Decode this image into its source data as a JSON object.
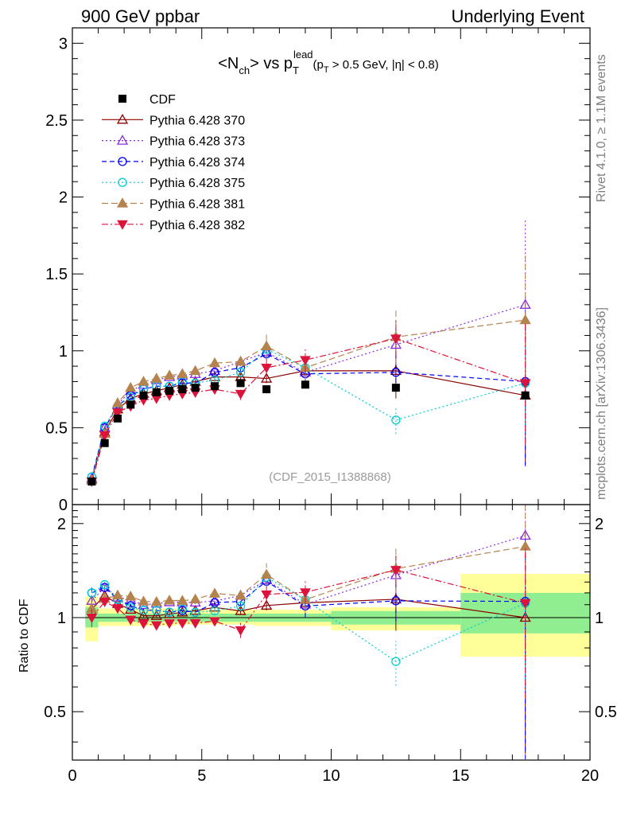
{
  "header": {
    "left": "900 GeV ppbar",
    "right": "Underlying Event"
  },
  "side_labels": {
    "top": "Rivet 4.1.0, ≥ 1.1M events",
    "bottom": "mcplots.cern.ch [arXiv:1306.3436]"
  },
  "chart_data": {
    "type": "scatter",
    "title_parts": {
      "a": "<N",
      "a_sub": "ch",
      "b": "> vs p",
      "b_sub": "T",
      "b_sup": "lead",
      "c": "(p",
      "c_sub": "T",
      "d": " > 0.5 GeV, |η| < 0.8)"
    },
    "watermark": "(CDF_2015_I1388868)",
    "ratio_ylabel": "Ratio to CDF",
    "x_ticks": [
      "0",
      "5",
      "10",
      "15",
      "20"
    ],
    "main_y_ticks": [
      "0",
      "0.5",
      "1",
      "1.5",
      "2",
      "2.5",
      "3"
    ],
    "ratio_y_ticks": [
      "0.5",
      "1",
      "2"
    ],
    "xlim": [
      0,
      20
    ],
    "main_ylim": [
      0,
      3.1
    ],
    "ratio_ylim": [
      0.35,
      2.3
    ],
    "x": [
      0.75,
      1.25,
      1.75,
      2.25,
      2.75,
      3.25,
      3.75,
      4.25,
      4.75,
      5.5,
      6.5,
      7.5,
      9.0,
      12.5,
      17.5
    ],
    "data_series": {
      "name": "CDF",
      "color": "#000000",
      "values": [
        0.15,
        0.4,
        0.56,
        0.65,
        0.71,
        0.73,
        0.74,
        0.75,
        0.76,
        0.77,
        0.79,
        0.75,
        0.78,
        0.76,
        0.71
      ]
    },
    "ratio_bands": [
      {
        "x0": 0.5,
        "x1": 1.0,
        "yel_lo": 0.84,
        "yel_hi": 1.17,
        "grn_lo": 0.93,
        "grn_hi": 1.08
      },
      {
        "x0": 1.0,
        "x1": 4.0,
        "yel_lo": 0.94,
        "yel_hi": 1.07,
        "grn_lo": 0.97,
        "grn_hi": 1.03
      },
      {
        "x0": 4.0,
        "x1": 7.0,
        "yel_lo": 0.95,
        "yel_hi": 1.06,
        "grn_lo": 0.97,
        "grn_hi": 1.03
      },
      {
        "x0": 7.0,
        "x1": 10.0,
        "yel_lo": 0.94,
        "yel_hi": 1.06,
        "grn_lo": 0.97,
        "grn_hi": 1.03
      },
      {
        "x0": 10.0,
        "x1": 15.0,
        "yel_lo": 0.91,
        "yel_hi": 1.08,
        "grn_lo": 0.95,
        "grn_hi": 1.05
      },
      {
        "x0": 15.0,
        "x1": 20.0,
        "yel_lo": 0.75,
        "yel_hi": 1.38,
        "grn_lo": 0.89,
        "grn_hi": 1.2
      }
    ],
    "series": [
      {
        "name": "Pythia 6.428 370",
        "color": "#8b0000",
        "marker": "tri-up-open",
        "dash": "",
        "values": [
          0.16,
          0.47,
          0.62,
          0.69,
          0.72,
          0.74,
          0.76,
          0.78,
          0.8,
          0.83,
          0.83,
          0.82,
          0.87,
          0.87,
          0.71
        ],
        "err": [
          0.01,
          0.01,
          0.01,
          0.01,
          0.01,
          0.01,
          0.01,
          0.01,
          0.01,
          0.02,
          0.02,
          0.03,
          0.06,
          0.18,
          0.45
        ]
      },
      {
        "name": "Pythia 6.428 373",
        "color": "#8a2be2",
        "marker": "tri-up-open",
        "dash": "2,3",
        "values": [
          0.17,
          0.5,
          0.65,
          0.74,
          0.78,
          0.81,
          0.83,
          0.84,
          0.85,
          0.87,
          0.93,
          0.99,
          0.86,
          1.04,
          1.3
        ],
        "err": [
          0.01,
          0.01,
          0.01,
          0.01,
          0.01,
          0.01,
          0.01,
          0.01,
          0.01,
          0.02,
          0.03,
          0.05,
          0.07,
          0.16,
          0.55
        ]
      },
      {
        "name": "Pythia 6.428 374",
        "color": "#0000ff",
        "marker": "circle-open",
        "dash": "6,4",
        "values": [
          0.18,
          0.5,
          0.64,
          0.71,
          0.75,
          0.77,
          0.77,
          0.79,
          0.79,
          0.86,
          0.89,
          0.98,
          0.85,
          0.86,
          0.8
        ],
        "err": [
          0.01,
          0.01,
          0.01,
          0.01,
          0.01,
          0.01,
          0.01,
          0.01,
          0.01,
          0.02,
          0.03,
          0.04,
          0.07,
          0.12,
          0.55
        ]
      },
      {
        "name": "Pythia 6.428 375",
        "color": "#00ced1",
        "marker": "circle-open",
        "dash": "2,3",
        "values": [
          0.18,
          0.51,
          0.64,
          0.7,
          0.75,
          0.77,
          0.77,
          0.8,
          0.79,
          0.81,
          0.86,
          1.01,
          0.89,
          0.55,
          0.79
        ],
        "err": [
          0.01,
          0.01,
          0.01,
          0.01,
          0.01,
          0.01,
          0.01,
          0.01,
          0.01,
          0.02,
          0.03,
          0.04,
          0.06,
          0.09,
          0.4
        ]
      },
      {
        "name": "Pythia 6.428 381",
        "color": "#b5834e",
        "marker": "tri-up-filled",
        "dash": "8,4",
        "values": [
          0.16,
          0.46,
          0.66,
          0.76,
          0.8,
          0.82,
          0.84,
          0.85,
          0.87,
          0.92,
          0.93,
          1.03,
          0.89,
          1.09,
          1.2
        ],
        "err": [
          0.01,
          0.01,
          0.01,
          0.01,
          0.01,
          0.01,
          0.01,
          0.01,
          0.01,
          0.02,
          0.03,
          0.09,
          0.08,
          0.18,
          0.42
        ]
      },
      {
        "name": "Pythia 6.428 382",
        "color": "#dc143c",
        "marker": "tri-down-filled",
        "dash": "8,3,2,3",
        "values": [
          0.15,
          0.45,
          0.6,
          0.64,
          0.68,
          0.69,
          0.71,
          0.72,
          0.73,
          0.75,
          0.72,
          0.89,
          0.94,
          1.08,
          0.79
        ],
        "err": [
          0.01,
          0.01,
          0.01,
          0.01,
          0.01,
          0.01,
          0.01,
          0.01,
          0.01,
          0.02,
          0.04,
          0.07,
          0.08,
          0.12,
          0.4
        ]
      }
    ]
  }
}
